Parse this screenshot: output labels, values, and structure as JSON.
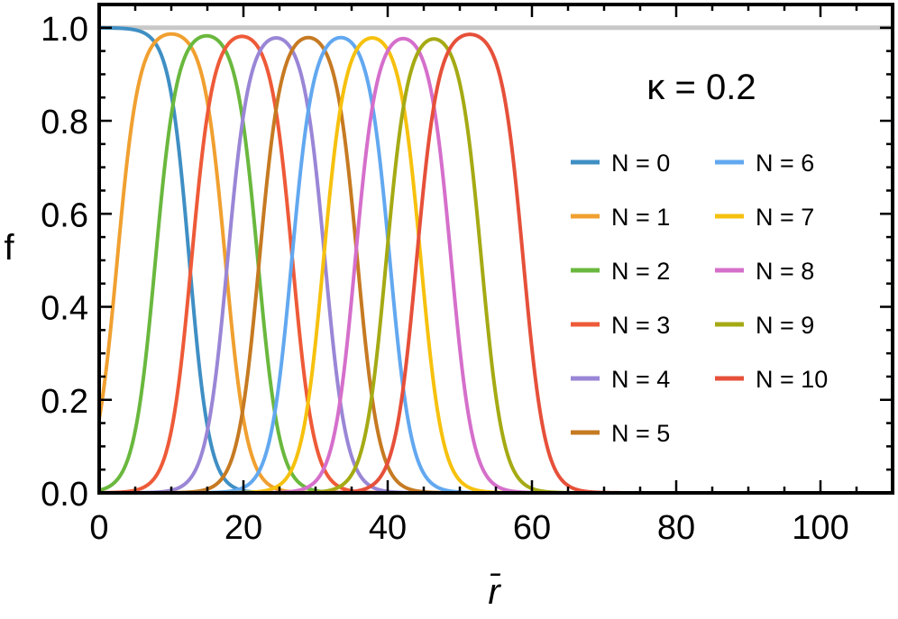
{
  "chart_data": {
    "type": "line",
    "xlabel": "r̄",
    "ylabel": "f",
    "annotation": "κ = 0.2",
    "xlim": [
      0,
      110
    ],
    "ylim": [
      0,
      1.05
    ],
    "xticks": [
      0,
      20,
      40,
      60,
      80,
      100
    ],
    "xtick_labels": [
      "0",
      "20",
      "40",
      "60",
      "80",
      "100"
    ],
    "yticks": [
      0,
      0.2,
      0.4,
      0.6,
      0.8,
      1.0
    ],
    "ytick_labels": [
      "0.0",
      "0.2",
      "0.4",
      "0.6",
      "0.8",
      "1.0"
    ],
    "grid": false,
    "legend_position": "right",
    "reference_line": {
      "y": 1.0,
      "color": "#c8c8c8"
    },
    "series": [
      {
        "name": "N = 0",
        "color": "#3f8fc4",
        "rise": null,
        "fall": 12.5,
        "width": 1.4
      },
      {
        "name": "N = 1",
        "color": "#f0a030",
        "rise": 2.5,
        "fall": 17.5,
        "width": 1.5
      },
      {
        "name": "N = 2",
        "color": "#6ab83e",
        "rise": 7.8,
        "fall": 22.0,
        "width": 1.5
      },
      {
        "name": "N = 3",
        "color": "#ee5a38",
        "rise": 12.8,
        "fall": 26.8,
        "width": 1.5
      },
      {
        "name": "N = 4",
        "color": "#9a86d6",
        "rise": 17.8,
        "fall": 31.3,
        "width": 1.5
      },
      {
        "name": "N = 5",
        "color": "#c67a22",
        "rise": 22.2,
        "fall": 35.8,
        "width": 1.5
      },
      {
        "name": "N = 6",
        "color": "#62a8f0",
        "rise": 26.7,
        "fall": 40.3,
        "width": 1.5
      },
      {
        "name": "N = 7",
        "color": "#f6c10e",
        "rise": 31.1,
        "fall": 44.6,
        "width": 1.5
      },
      {
        "name": "N = 8",
        "color": "#d56fcb",
        "rise": 35.5,
        "fall": 48.8,
        "width": 1.5
      },
      {
        "name": "N = 9",
        "color": "#a5aa14",
        "rise": 39.8,
        "fall": 53.0,
        "width": 1.5
      },
      {
        "name": "N = 10",
        "color": "#e6503a",
        "rise": 44.0,
        "fall": 58.8,
        "width": 1.5
      }
    ]
  }
}
